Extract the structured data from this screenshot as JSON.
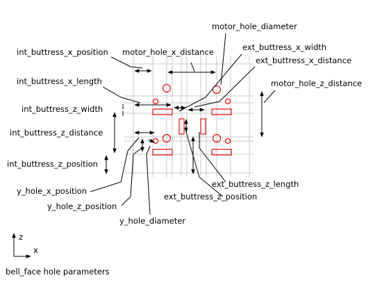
{
  "diagram": {
    "caption": "bell_face hole parameters",
    "axes": {
      "vertical": "z",
      "horizontal": "x"
    },
    "labels": {
      "motor_hole_diameter": "motor_hole_diameter",
      "int_buttress_x_position": "int_buttress_x_position",
      "motor_hole_x_distance": "motor_hole_x_distance",
      "ext_buttress_x_width": "ext_buttress_x_width",
      "ext_buttress_x_distance": "ext_buttress_x_distance",
      "int_buttress_x_length": "int_buttress_x_length",
      "motor_hole_z_distance": "motor_hole_z_distance",
      "int_buttress_z_width": "int_buttress_z_width",
      "int_buttress_z_distance": "int_buttress_z_distance",
      "int_buttress_z_position": "int_buttress_z_position",
      "ext_buttress_z_length": "ext_buttress_z_length",
      "y_hole_x_position": "y_hole_x_position",
      "ext_buttress_z_position": "ext_buttress_z_position",
      "y_hole_z_position": "y_hole_z_position",
      "y_hole_diameter": "y_hole_diameter"
    },
    "colors": {
      "feature": "#e01010",
      "construction": "#c8c8c8",
      "dimension": "#000000"
    }
  }
}
